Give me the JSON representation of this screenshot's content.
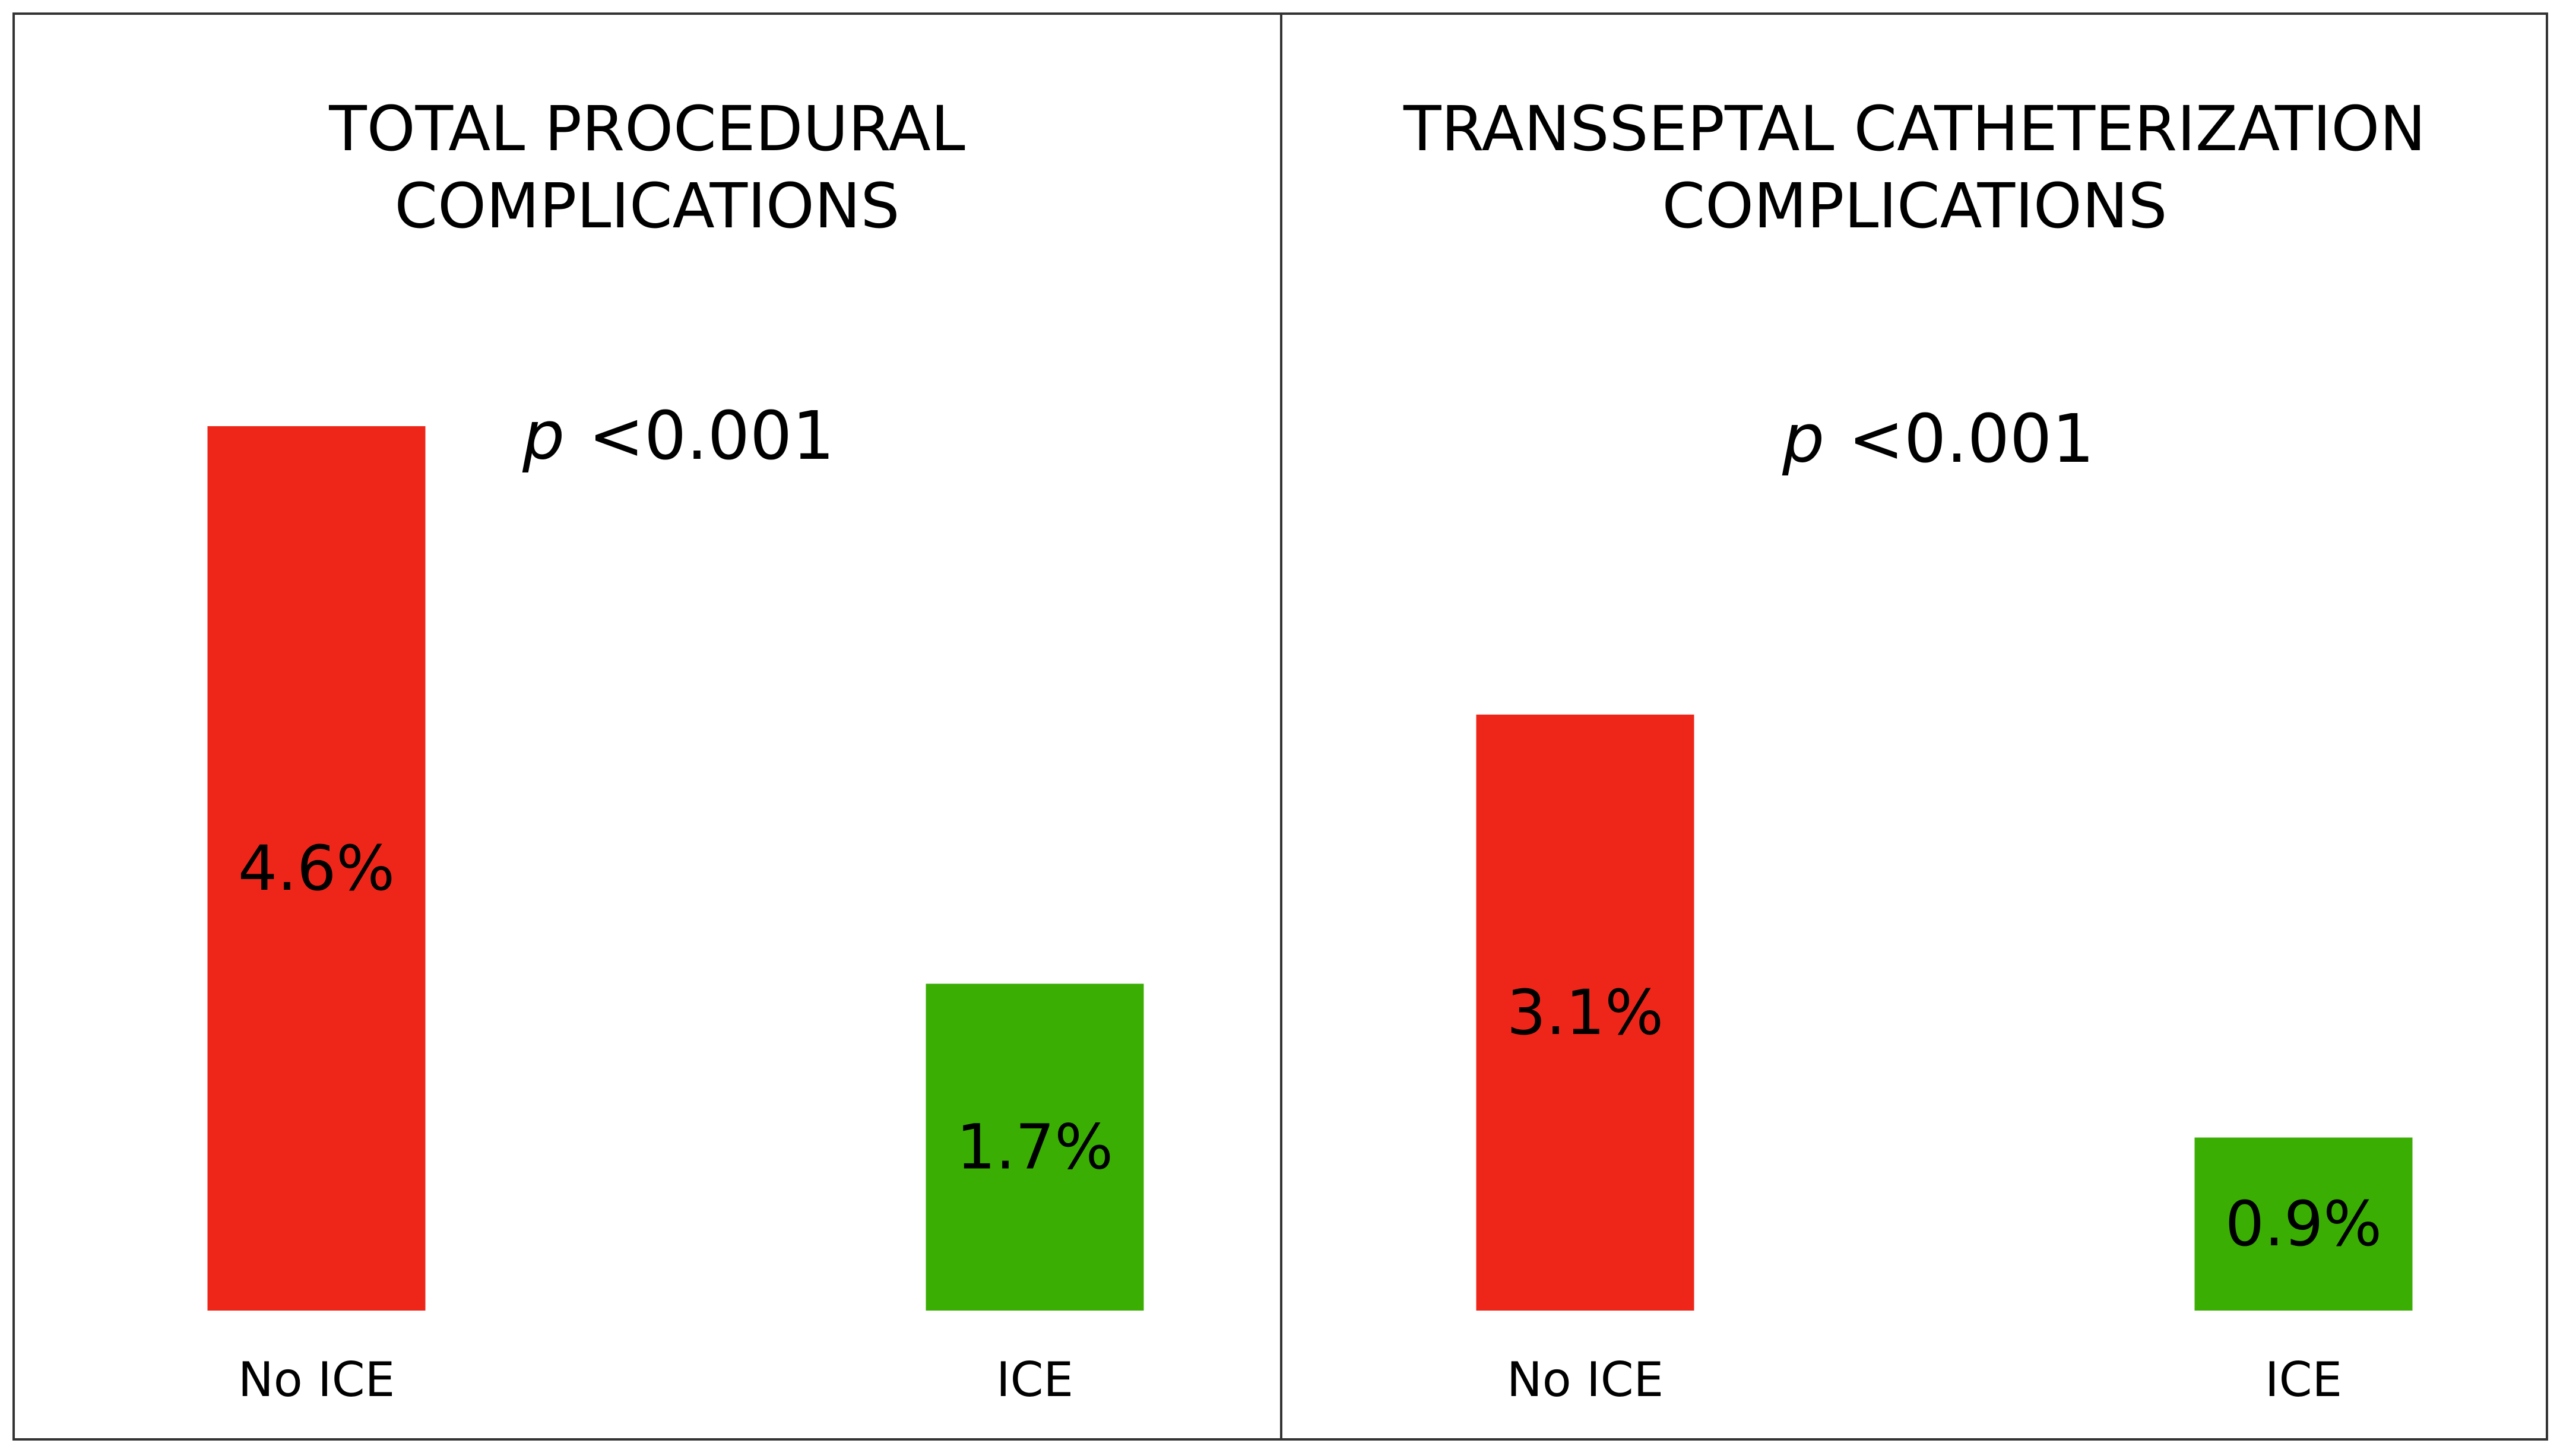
{
  "chart_data": [
    {
      "type": "bar",
      "title_lines": [
        "TOTAL PROCEDURAL",
        "COMPLICATIONS"
      ],
      "p_symbol": "p",
      "p_value": "<0.001",
      "categories": [
        "No ICE",
        "ICE"
      ],
      "values": [
        4.6,
        1.7
      ],
      "value_labels": [
        "4.6%",
        "1.7%"
      ],
      "colors": [
        "#ee2619",
        "#3aae03"
      ],
      "xlabel": "",
      "ylabel": "",
      "ylim": [
        0,
        4.6
      ],
      "grid": false
    },
    {
      "type": "bar",
      "title_lines": [
        "TRANSSEPTAL CATHETERIZATION",
        "COMPLICATIONS"
      ],
      "p_symbol": "p",
      "p_value": "<0.001",
      "categories": [
        "No ICE",
        "ICE"
      ],
      "values": [
        3.1,
        0.9
      ],
      "value_labels": [
        "3.1%",
        "0.9%"
      ],
      "colors": [
        "#ee2619",
        "#3aae03"
      ],
      "xlabel": "",
      "ylabel": "",
      "ylim": [
        0,
        4.6
      ],
      "grid": false
    }
  ]
}
